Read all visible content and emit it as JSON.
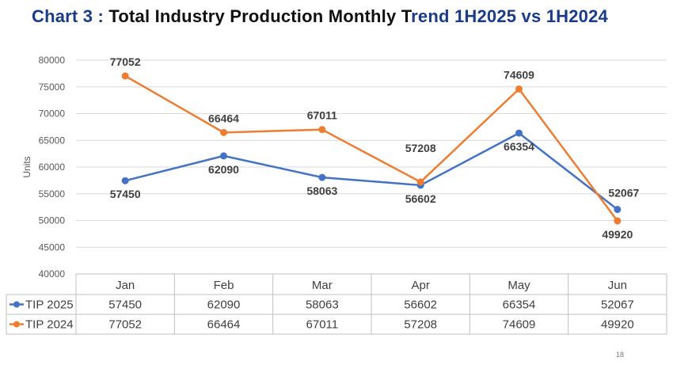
{
  "title": {
    "prefix": "Chart 3 :",
    "main": "Total Industry Production Monthly T",
    "tail": "rend 1H2025 vs 1H2024"
  },
  "page_number": "18",
  "chart_data": {
    "type": "line",
    "title": "Chart 3 : Total Industry Production Monthly Trend 1H2025 vs 1H2024",
    "ylabel": "Units",
    "xlabel": "",
    "ylim": [
      40000,
      80000
    ],
    "yticks": [
      40000,
      45000,
      50000,
      55000,
      60000,
      65000,
      70000,
      75000,
      80000
    ],
    "grid": true,
    "legend": "data-table",
    "categories": [
      "Jan",
      "Feb",
      "Mar",
      "Apr",
      "May",
      "Jun"
    ],
    "series": [
      {
        "name": "TIP 2025",
        "color": "#4472c4",
        "values": [
          57450,
          62090,
          58063,
          56602,
          66354,
          52067
        ]
      },
      {
        "name": "TIP 2024",
        "color": "#ed7d31",
        "values": [
          77052,
          66464,
          67011,
          57208,
          74609,
          49920
        ]
      }
    ]
  }
}
